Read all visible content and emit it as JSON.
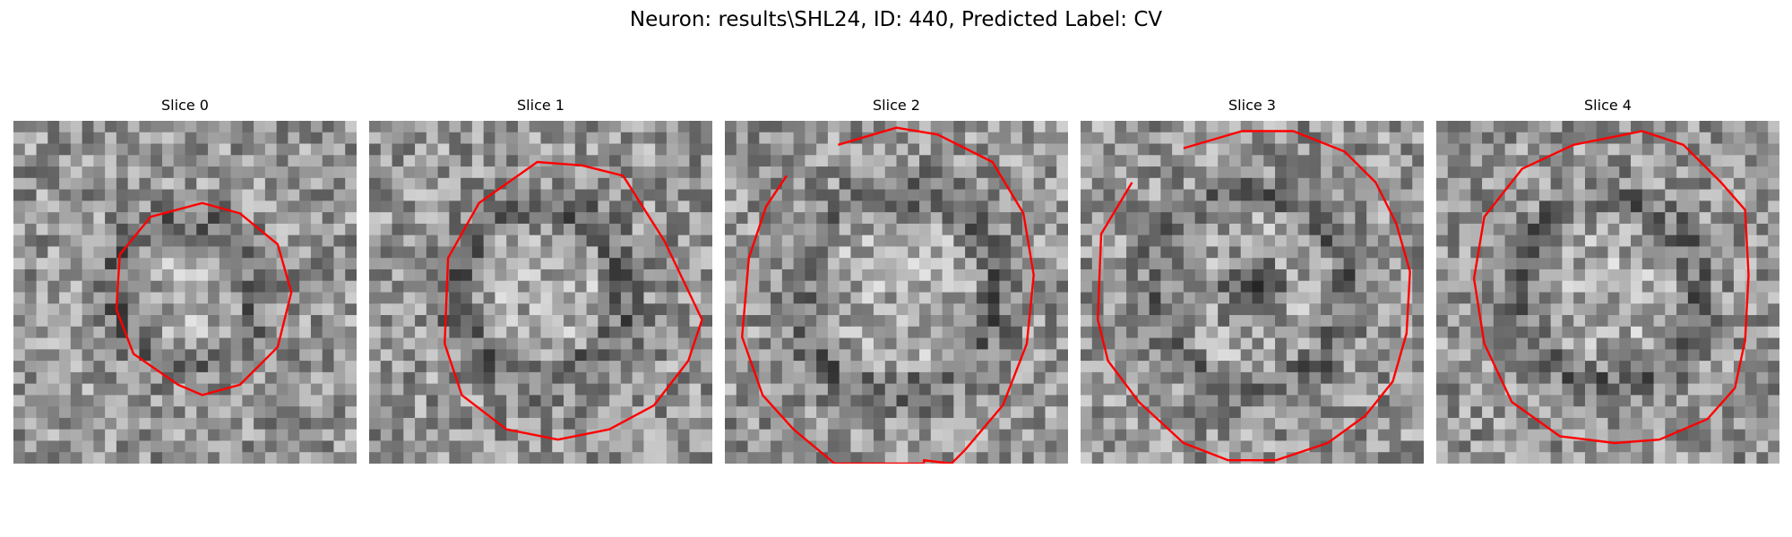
{
  "figure": {
    "title": "Neuron: results\\SHL24, ID: 440, Predicted Label: CV"
  },
  "colors": {
    "contour": "#ff0000",
    "background": "#ffffff"
  },
  "panels": [
    {
      "title": "Slice 0",
      "seed": 11,
      "contour": [
        [
          0.55,
          0.24
        ],
        [
          0.66,
          0.27
        ],
        [
          0.77,
          0.36
        ],
        [
          0.81,
          0.5
        ],
        [
          0.77,
          0.66
        ],
        [
          0.66,
          0.77
        ],
        [
          0.55,
          0.8
        ],
        [
          0.48,
          0.77
        ],
        [
          0.35,
          0.68
        ],
        [
          0.3,
          0.55
        ],
        [
          0.31,
          0.39
        ],
        [
          0.4,
          0.28
        ]
      ],
      "cut_bottom": false,
      "dark_center": false,
      "ring_radius": 0.35
    },
    {
      "title": "Slice 1",
      "seed": 23,
      "contour": [
        [
          0.49,
          0.12
        ],
        [
          0.62,
          0.13
        ],
        [
          0.74,
          0.16
        ],
        [
          0.86,
          0.35
        ],
        [
          0.97,
          0.58
        ],
        [
          0.93,
          0.7
        ],
        [
          0.83,
          0.83
        ],
        [
          0.7,
          0.9
        ],
        [
          0.55,
          0.93
        ],
        [
          0.4,
          0.9
        ],
        [
          0.27,
          0.8
        ],
        [
          0.22,
          0.65
        ],
        [
          0.23,
          0.4
        ],
        [
          0.32,
          0.24
        ]
      ],
      "cut_bottom": false,
      "dark_center": false,
      "ring_radius": 0.44
    },
    {
      "title": "Slice 2",
      "seed": 37,
      "contour": [
        [
          0.33,
          0.07
        ],
        [
          0.5,
          0.02
        ],
        [
          0.62,
          0.04
        ],
        [
          0.78,
          0.12
        ],
        [
          0.87,
          0.27
        ],
        [
          0.9,
          0.45
        ],
        [
          0.88,
          0.65
        ],
        [
          0.81,
          0.83
        ],
        [
          0.7,
          0.96
        ],
        [
          0.66,
          1.0
        ],
        [
          0.58,
          0.99
        ],
        [
          0.58,
          1.0
        ],
        [
          0.32,
          1.0
        ],
        [
          0.2,
          0.9
        ],
        [
          0.11,
          0.8
        ],
        [
          0.05,
          0.63
        ],
        [
          0.07,
          0.4
        ],
        [
          0.12,
          0.25
        ],
        [
          0.18,
          0.16
        ]
      ],
      "cut_bottom": true,
      "dark_center": false,
      "ring_radius": 0.52
    },
    {
      "title": "Slice 3",
      "seed": 41,
      "contour": [
        [
          0.3,
          0.08
        ],
        [
          0.47,
          0.03
        ],
        [
          0.62,
          0.03
        ],
        [
          0.77,
          0.09
        ],
        [
          0.86,
          0.18
        ],
        [
          0.92,
          0.3
        ],
        [
          0.96,
          0.44
        ],
        [
          0.95,
          0.62
        ],
        [
          0.91,
          0.76
        ],
        [
          0.83,
          0.86
        ],
        [
          0.72,
          0.94
        ],
        [
          0.57,
          0.99
        ],
        [
          0.43,
          0.99
        ],
        [
          0.3,
          0.94
        ],
        [
          0.17,
          0.82
        ],
        [
          0.08,
          0.7
        ],
        [
          0.05,
          0.58
        ],
        [
          0.06,
          0.33
        ],
        [
          0.15,
          0.18
        ]
      ],
      "cut_bottom": true,
      "dark_center": true,
      "ring_radius": 0.5
    },
    {
      "title": "Slice 4",
      "seed": 53,
      "contour": [
        [
          0.5,
          0.05
        ],
        [
          0.6,
          0.03
        ],
        [
          0.72,
          0.07
        ],
        [
          0.83,
          0.18
        ],
        [
          0.9,
          0.26
        ],
        [
          0.91,
          0.45
        ],
        [
          0.9,
          0.64
        ],
        [
          0.87,
          0.78
        ],
        [
          0.79,
          0.87
        ],
        [
          0.65,
          0.93
        ],
        [
          0.52,
          0.94
        ],
        [
          0.36,
          0.92
        ],
        [
          0.22,
          0.82
        ],
        [
          0.14,
          0.65
        ],
        [
          0.11,
          0.46
        ],
        [
          0.14,
          0.28
        ],
        [
          0.25,
          0.14
        ],
        [
          0.4,
          0.07
        ]
      ],
      "cut_bottom": false,
      "dark_center": false,
      "ring_radius": 0.46
    }
  ]
}
